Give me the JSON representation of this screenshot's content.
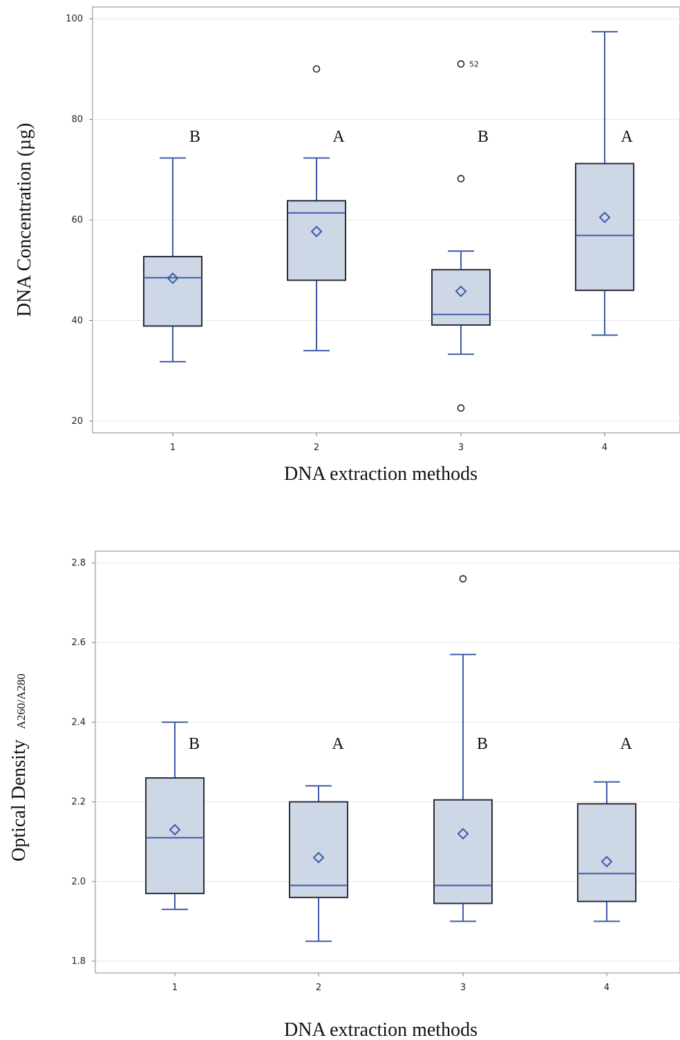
{
  "chart_data": [
    {
      "type": "box",
      "ylabel": "DNA Concentration (µg)",
      "xlabel": "DNA extraction methods",
      "ylim": [
        18,
        103
      ],
      "yticks": [
        20,
        40,
        60,
        80,
        100
      ],
      "grid": true,
      "categories": [
        "1",
        "2",
        "3",
        "4"
      ],
      "boxes": [
        {
          "category": "1",
          "whisker_low": 31.8,
          "q1": 38.9,
          "median": 48.5,
          "q3": 52.7,
          "whisker_high": 72.3,
          "mean": 48.4,
          "outliers": [],
          "group": "B"
        },
        {
          "category": "2",
          "whisker_low": 34.0,
          "q1": 48.0,
          "median": 61.4,
          "q3": 63.8,
          "whisker_high": 72.3,
          "mean": 57.7,
          "outliers": [
            {
              "value": 90.0
            }
          ],
          "group": "A"
        },
        {
          "category": "3",
          "whisker_low": 33.3,
          "q1": 39.1,
          "median": 41.2,
          "q3": 50.1,
          "whisker_high": 53.8,
          "mean": 45.8,
          "outliers": [
            {
              "value": 91.0,
              "label": "52"
            },
            {
              "value": 68.2
            },
            {
              "value": 22.6
            }
          ],
          "group": "B"
        },
        {
          "category": "4",
          "whisker_low": 37.1,
          "q1": 46.0,
          "median": 56.9,
          "q3": 71.2,
          "whisker_high": 97.4,
          "mean": 60.5,
          "outliers": [],
          "group": "A"
        }
      ]
    },
    {
      "type": "box",
      "ylabel": "Optical Density",
      "ylabel_sub": "A260/A280",
      "xlabel": "DNA extraction methods",
      "ylim": [
        1.77,
        2.83
      ],
      "yticks": [
        "1.8",
        "2.0",
        "2.2",
        "2.4",
        "2.6",
        "2.8"
      ],
      "grid": true,
      "categories": [
        "1",
        "2",
        "3",
        "4"
      ],
      "boxes": [
        {
          "category": "1",
          "whisker_low": 1.93,
          "q1": 1.97,
          "median": 2.11,
          "q3": 2.26,
          "whisker_high": 2.4,
          "mean": 2.13,
          "outliers": [],
          "group": "B"
        },
        {
          "category": "2",
          "whisker_low": 1.85,
          "q1": 1.96,
          "median": 1.99,
          "q3": 2.2,
          "whisker_high": 2.24,
          "mean": 2.06,
          "outliers": [],
          "group": "A"
        },
        {
          "category": "3",
          "whisker_low": 1.9,
          "q1": 1.945,
          "median": 1.99,
          "q3": 2.205,
          "whisker_high": 2.57,
          "mean": 2.12,
          "outliers": [
            {
              "value": 2.76
            }
          ],
          "group": "B"
        },
        {
          "category": "4",
          "whisker_low": 1.9,
          "q1": 1.95,
          "median": 2.02,
          "q3": 2.195,
          "whisker_high": 2.25,
          "mean": 2.05,
          "outliers": [],
          "group": "A"
        }
      ]
    }
  ],
  "colors": {
    "box_fill": "#cdd7e6",
    "box_border": "#2b2b3a",
    "whisker": "#3c5aa8",
    "median": "#3c5aa8",
    "mean_marker": "#3c5aa8",
    "grid": "#e6e6e6",
    "frame": "#9a9a9a"
  },
  "icons": {
    "mean_marker": "diamond",
    "outlier_marker": "open-circle"
  }
}
